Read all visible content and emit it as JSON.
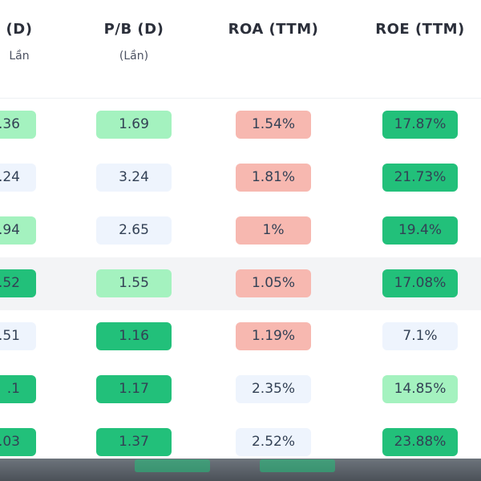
{
  "header": {
    "columns": [
      {
        "title": "(D)",
        "unit": "Lần"
      },
      {
        "title": "P/B (D)",
        "unit": "(Lần)"
      },
      {
        "title": "ROA (TTM)",
        "unit": ""
      },
      {
        "title": "ROE (TTM)",
        "unit": ""
      }
    ]
  },
  "rows": [
    {
      "c0": ".36",
      "c1": "1.69",
      "c2": "1.54%",
      "c3": "17.87%"
    },
    {
      "c0": ".24",
      "c1": "3.24",
      "c2": "1.81%",
      "c3": "21.73%"
    },
    {
      "c0": ".94",
      "c1": "2.65",
      "c2": "1%",
      "c3": "19.4%"
    },
    {
      "c0": ".52",
      "c1": "1.55",
      "c2": "1.05%",
      "c3": "17.08%"
    },
    {
      "c0": ".51",
      "c1": "1.16",
      "c2": "1.19%",
      "c3": "7.1%"
    },
    {
      "c0": ".1",
      "c1": "1.17",
      "c2": "2.35%",
      "c3": "14.85%"
    },
    {
      "c0": ".03",
      "c1": "1.37",
      "c2": "2.52%",
      "c3": "23.88%"
    }
  ],
  "colors": {
    "neutral": "#eef4fd",
    "light_green": "#a4f2bf",
    "dark_green": "#22c07a",
    "red": "#f7b8b0",
    "row_highlight": "#f3f4f6"
  }
}
